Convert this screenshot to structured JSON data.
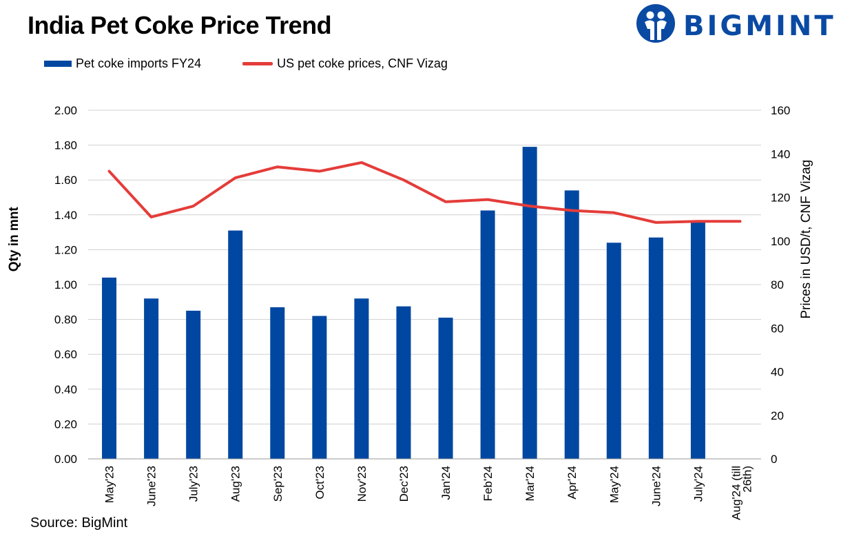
{
  "title": "India Pet Coke Price Trend",
  "logo": {
    "text": "BIGMINT",
    "icon": "bigmint-people-icon",
    "color": "#0a4aa3"
  },
  "source": "Source: BigMint",
  "chart_data": {
    "type": "bar",
    "categories": [
      "May'23",
      "June'23",
      "July'23",
      "Aug'23",
      "Sep'23",
      "Oct'23",
      "Nov'23",
      "Dec'23",
      "Jan'24",
      "Feb'24",
      "Mar'24",
      "Apr'24",
      "May'24",
      "June'24",
      "July'24",
      "Aug'24 (till 26th)"
    ],
    "series": [
      {
        "name": "Pet coke imports FY24",
        "kind": "bar",
        "axis": "left",
        "color": "#0047a1",
        "values": [
          1.04,
          0.92,
          0.85,
          1.31,
          0.87,
          0.82,
          0.92,
          0.875,
          0.81,
          1.425,
          1.79,
          1.54,
          1.24,
          1.27,
          1.36,
          null
        ]
      },
      {
        "name": "US pet coke prices, CNF Vizag",
        "kind": "line",
        "axis": "right",
        "color": "#e43d3a",
        "values": [
          132,
          111,
          116,
          129,
          134,
          132,
          136,
          128,
          118,
          119,
          116,
          114,
          113,
          108.5,
          109,
          109
        ]
      }
    ],
    "ylabel": "Qty in mnt",
    "y2label": "Prices in USD/t, CNF Vizag",
    "ylim": [
      0,
      2
    ],
    "y2lim": [
      0,
      160
    ],
    "yticks": [
      "0.00",
      "0.20",
      "0.40",
      "0.60",
      "0.80",
      "1.00",
      "1.20",
      "1.40",
      "1.60",
      "1.80",
      "2.00"
    ],
    "y2ticks": [
      "0",
      "20",
      "40",
      "60",
      "80",
      "100",
      "120",
      "140",
      "160"
    ],
    "grid": true,
    "legend_position": "top-left"
  }
}
